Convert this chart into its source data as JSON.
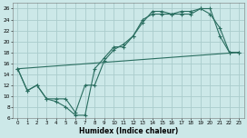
{
  "xlabel": "Humidex (Indice chaleur)",
  "xlim": [
    -0.5,
    23.5
  ],
  "ylim": [
    6,
    27
  ],
  "yticks": [
    6,
    8,
    10,
    12,
    14,
    16,
    18,
    20,
    22,
    24,
    26
  ],
  "xticks": [
    0,
    1,
    2,
    3,
    4,
    5,
    6,
    7,
    8,
    9,
    10,
    11,
    12,
    13,
    14,
    15,
    16,
    17,
    18,
    19,
    20,
    21,
    22,
    23
  ],
  "background_color": "#cce8e8",
  "grid_color": "#aacccc",
  "line_color": "#2a6e60",
  "line1_x": [
    0,
    1,
    2,
    3,
    4,
    5,
    6,
    7,
    8,
    9,
    10,
    11,
    12,
    13,
    14,
    15,
    16,
    17,
    18,
    19,
    20,
    21,
    22,
    23
  ],
  "line1_y": [
    15,
    11,
    12,
    9.5,
    9,
    8,
    6.5,
    6.5,
    15,
    17,
    19,
    19,
    21,
    24,
    25,
    25,
    25,
    25,
    25,
    26,
    26,
    21,
    18,
    18
  ],
  "line2_x": [
    0,
    1,
    2,
    3,
    4,
    5,
    6,
    7,
    8,
    9,
    10,
    11,
    12,
    13,
    14,
    15,
    16,
    17,
    18,
    19,
    20,
    21,
    22,
    23
  ],
  "line2_y": [
    15,
    11,
    12,
    9.5,
    9.5,
    9.5,
    7,
    12,
    12,
    16.5,
    18.5,
    19.5,
    21,
    23.5,
    25.5,
    25.5,
    25,
    25.5,
    25.5,
    26,
    25,
    22.5,
    18,
    18
  ],
  "line3_x": [
    0,
    23
  ],
  "line3_y": [
    15,
    18
  ],
  "marker": "+"
}
